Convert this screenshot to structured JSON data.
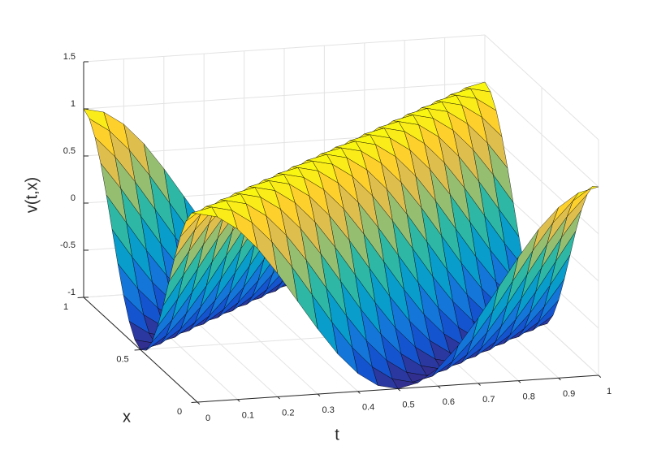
{
  "chart_data": {
    "type": "surface",
    "xlabel": "t",
    "ylabel": "x",
    "zlabel": "v(t,x)",
    "x": [
      0,
      0.05,
      0.1,
      0.15,
      0.2,
      0.25,
      0.3,
      0.35,
      0.4,
      0.45,
      0.5,
      0.55,
      0.6,
      0.65,
      0.7,
      0.75,
      0.8,
      0.85,
      0.9,
      0.95,
      1
    ],
    "y": [
      0,
      0.05,
      0.1,
      0.15,
      0.2,
      0.25,
      0.3,
      0.35,
      0.4,
      0.45,
      0.5,
      0.55,
      0.6,
      0.65,
      0.7,
      0.75,
      0.8,
      0.85,
      0.9,
      0.95,
      1
    ],
    "z": [
      [
        1,
        0.951,
        0.809,
        0.588,
        0.309,
        0,
        -0.309,
        -0.588,
        -0.809,
        -0.951,
        -1,
        -0.951,
        -0.809,
        -0.588,
        -0.309,
        0,
        0.309,
        0.588,
        0.809,
        0.951,
        1
      ],
      [
        0.951,
        1,
        0.951,
        0.809,
        0.588,
        0.309,
        0,
        -0.309,
        -0.588,
        -0.809,
        -0.951,
        -1,
        -0.951,
        -0.809,
        -0.588,
        -0.309,
        0,
        0.309,
        0.588,
        0.809,
        0.951
      ],
      [
        0.809,
        0.951,
        1,
        0.951,
        0.809,
        0.588,
        0.309,
        0,
        -0.309,
        -0.588,
        -0.809,
        -0.951,
        -1,
        -0.951,
        -0.809,
        -0.588,
        -0.309,
        0,
        0.309,
        0.588,
        0.809
      ],
      [
        0.588,
        0.809,
        0.951,
        1,
        0.951,
        0.809,
        0.588,
        0.309,
        0,
        -0.309,
        -0.588,
        -0.809,
        -0.951,
        -1,
        -0.951,
        -0.809,
        -0.588,
        -0.309,
        0,
        0.309,
        0.588
      ],
      [
        0.309,
        0.588,
        0.809,
        0.951,
        1,
        0.951,
        0.809,
        0.588,
        0.309,
        0,
        -0.309,
        -0.588,
        -0.809,
        -0.951,
        -1,
        -0.951,
        -0.809,
        -0.588,
        -0.309,
        0,
        0.309
      ],
      [
        0,
        0.309,
        0.588,
        0.809,
        0.951,
        1,
        0.951,
        0.809,
        0.588,
        0.309,
        0,
        -0.309,
        -0.588,
        -0.809,
        -0.951,
        -1,
        -0.951,
        -0.809,
        -0.588,
        -0.309,
        0
      ],
      [
        -0.309,
        0,
        0.309,
        0.588,
        0.809,
        0.951,
        1,
        0.951,
        0.809,
        0.588,
        0.309,
        0,
        -0.309,
        -0.588,
        -0.809,
        -0.951,
        -1,
        -0.951,
        -0.809,
        -0.588,
        -0.309
      ],
      [
        -0.588,
        -0.309,
        0,
        0.309,
        0.588,
        0.809,
        0.951,
        1,
        0.951,
        0.809,
        0.588,
        0.309,
        0,
        -0.309,
        -0.588,
        -0.809,
        -0.951,
        -1,
        -0.951,
        -0.809,
        -0.588
      ],
      [
        -0.809,
        -0.588,
        -0.309,
        0,
        0.309,
        0.588,
        0.809,
        0.951,
        1,
        0.951,
        0.809,
        0.588,
        0.309,
        0,
        -0.309,
        -0.588,
        -0.809,
        -0.951,
        -1,
        -0.951,
        -0.809
      ],
      [
        -0.951,
        -0.809,
        -0.588,
        -0.309,
        0,
        0.309,
        0.588,
        0.809,
        0.951,
        1,
        0.951,
        0.809,
        0.588,
        0.309,
        0,
        -0.309,
        -0.588,
        -0.809,
        -0.951,
        -1,
        -0.951
      ],
      [
        -1,
        -0.951,
        -0.809,
        -0.588,
        -0.309,
        0,
        0.309,
        0.588,
        0.809,
        0.951,
        1,
        0.951,
        0.809,
        0.588,
        0.309,
        0,
        -0.309,
        -0.588,
        -0.809,
        -0.951,
        -1
      ],
      [
        -0.951,
        -1,
        -0.951,
        -0.809,
        -0.588,
        -0.309,
        0,
        0.309,
        0.588,
        0.809,
        0.951,
        1,
        0.951,
        0.809,
        0.588,
        0.309,
        0,
        -0.309,
        -0.588,
        -0.809,
        -0.951
      ],
      [
        -0.809,
        -0.951,
        -1,
        -0.951,
        -0.809,
        -0.588,
        -0.309,
        0,
        0.309,
        0.588,
        0.809,
        0.951,
        1,
        0.951,
        0.809,
        0.588,
        0.309,
        0,
        -0.309,
        -0.588,
        -0.809
      ],
      [
        -0.588,
        -0.809,
        -0.951,
        -1,
        -0.951,
        -0.809,
        -0.588,
        -0.309,
        0,
        0.309,
        0.588,
        0.809,
        0.951,
        1,
        0.951,
        0.809,
        0.588,
        0.309,
        0,
        -0.309,
        -0.588
      ],
      [
        -0.309,
        -0.588,
        -0.809,
        -0.951,
        -1,
        -0.951,
        -0.809,
        -0.588,
        -0.309,
        0,
        0.309,
        0.588,
        0.809,
        0.951,
        1,
        0.951,
        0.809,
        0.588,
        0.309,
        0,
        -0.309
      ],
      [
        0,
        -0.309,
        -0.588,
        -0.809,
        -0.951,
        -1,
        -0.951,
        -0.809,
        -0.588,
        -0.309,
        0,
        0.309,
        0.588,
        0.809,
        0.951,
        1,
        0.951,
        0.809,
        0.588,
        0.309,
        0
      ],
      [
        0.309,
        0,
        -0.309,
        -0.588,
        -0.809,
        -0.951,
        -1,
        -0.951,
        -0.809,
        -0.588,
        -0.309,
        0,
        0.309,
        0.588,
        0.809,
        0.951,
        1,
        0.951,
        0.809,
        0.588,
        0.309
      ],
      [
        0.588,
        0.309,
        0,
        -0.309,
        -0.588,
        -0.809,
        -0.951,
        -1,
        -0.951,
        -0.809,
        -0.588,
        -0.309,
        0,
        0.309,
        0.588,
        0.809,
        0.951,
        1,
        0.951,
        0.809,
        0.588
      ],
      [
        0.809,
        0.588,
        0.309,
        0,
        -0.309,
        -0.588,
        -0.809,
        -0.951,
        -1,
        -0.951,
        -0.809,
        -0.588,
        -0.309,
        0,
        0.309,
        0.588,
        0.809,
        0.951,
        1,
        0.951,
        0.809
      ],
      [
        0.951,
        0.809,
        0.588,
        0.309,
        0,
        -0.309,
        -0.588,
        -0.809,
        -0.951,
        -1,
        -0.951,
        -0.809,
        -0.588,
        -0.309,
        0,
        0.309,
        0.588,
        0.809,
        0.951,
        1,
        0.951
      ],
      [
        1,
        0.951,
        0.809,
        0.588,
        0.309,
        0,
        -0.309,
        -0.588,
        -0.809,
        -0.951,
        -1,
        -0.951,
        -0.809,
        -0.588,
        -0.309,
        0,
        0.309,
        0.588,
        0.809,
        0.951,
        1
      ]
    ],
    "xlim": [
      0,
      1
    ],
    "xticks": [
      0,
      0.1,
      0.2,
      0.3,
      0.4,
      0.5,
      0.6,
      0.7,
      0.8,
      0.9,
      1
    ],
    "ylim": [
      0,
      1
    ],
    "yticks": [
      0,
      0.5,
      1
    ],
    "zlim": [
      -1,
      1.5
    ],
    "zticks": [
      -1,
      -0.5,
      0,
      0.5,
      1,
      1.5
    ],
    "grid": true,
    "edge_color": "#000000",
    "colormap": [
      "#352a87",
      "#0f5cdd",
      "#1481d6",
      "#06a4ca",
      "#2eb7a4",
      "#87bf77",
      "#d1bb59",
      "#fec832",
      "#f9fb0e"
    ]
  }
}
